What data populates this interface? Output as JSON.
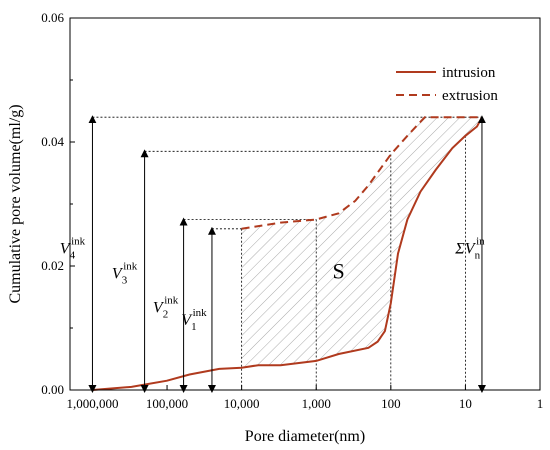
{
  "chart_data": {
    "type": "line",
    "title": "",
    "xlabel": "Pore diameter(nm)",
    "ylabel": "Cumulative pore volume(ml/g)",
    "x_scale": "log-reversed",
    "xlim": [
      2000000,
      1
    ],
    "ylim": [
      0,
      0.06
    ],
    "xticks": [
      1000000,
      100000,
      10000,
      1000,
      100,
      10,
      1
    ],
    "xtick_labels": [
      "1,000,000",
      "100,000",
      "10,000",
      "1,000",
      "100",
      "10",
      "1"
    ],
    "yticks": [
      0,
      0.02,
      0.04,
      0.06
    ],
    "ytick_labels": [
      "0.00",
      "0.02",
      "0.04",
      "0.06"
    ],
    "legend_position": "top-right",
    "series": [
      {
        "name": "intrusion",
        "style": "solid",
        "color": "#b03a1e",
        "points": [
          [
            1000000,
            0.0
          ],
          [
            300000,
            0.0005
          ],
          [
            100000,
            0.0015
          ],
          [
            50000,
            0.0025
          ],
          [
            30000,
            0.003
          ],
          [
            20000,
            0.0034
          ],
          [
            10000,
            0.0036
          ],
          [
            6000,
            0.004
          ],
          [
            3000,
            0.004
          ],
          [
            1000,
            0.0047
          ],
          [
            500,
            0.0058
          ],
          [
            200,
            0.0068
          ],
          [
            150,
            0.0078
          ],
          [
            120,
            0.0095
          ],
          [
            100,
            0.014
          ],
          [
            80,
            0.022
          ],
          [
            60,
            0.0275
          ],
          [
            40,
            0.032
          ],
          [
            25,
            0.0355
          ],
          [
            15,
            0.039
          ],
          [
            10,
            0.041
          ],
          [
            7,
            0.0425
          ],
          [
            6,
            0.044
          ]
        ]
      },
      {
        "name": "extrusion",
        "style": "dashed",
        "color": "#b03a1e",
        "points": [
          [
            10000,
            0.026
          ],
          [
            3000,
            0.027
          ],
          [
            1000,
            0.0275
          ],
          [
            500,
            0.0285
          ],
          [
            300,
            0.0305
          ],
          [
            200,
            0.033
          ],
          [
            100,
            0.038
          ],
          [
            60,
            0.041
          ],
          [
            35,
            0.044
          ],
          [
            15,
            0.044
          ],
          [
            10,
            0.044
          ],
          [
            6,
            0.044
          ]
        ]
      }
    ],
    "annotations": [
      {
        "base": "V",
        "sub": "4",
        "sup": "ink",
        "value": 0.044,
        "x": 1000000
      },
      {
        "base": "V",
        "sub": "3",
        "sup": "ink",
        "value": 0.0385,
        "x": 200000
      },
      {
        "base": "V",
        "sub": "2",
        "sup": "ink",
        "value": 0.0275,
        "x": 60000
      },
      {
        "base": "V",
        "sub": "1",
        "sup": "ink",
        "value": 0.026,
        "x": 25000
      },
      {
        "base": "ΣV",
        "sub": "n",
        "sup": "in",
        "value": 0.044,
        "x": 6
      }
    ],
    "region_label": "S"
  }
}
